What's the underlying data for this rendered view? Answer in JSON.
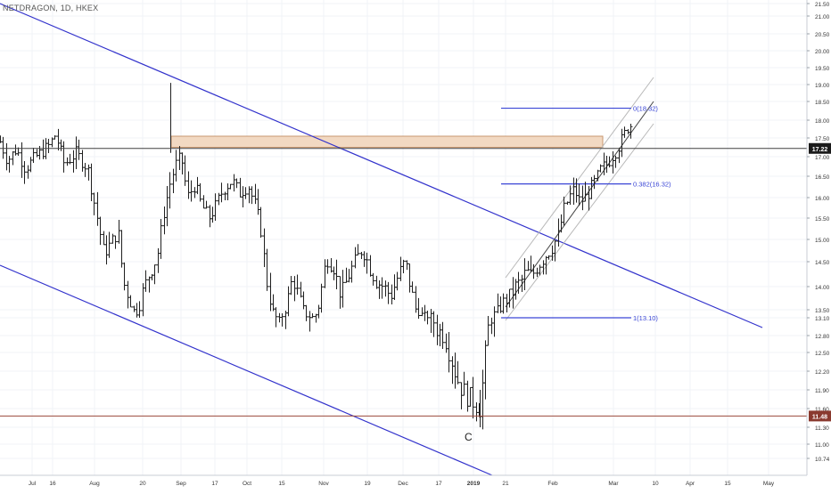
{
  "symbol_label": "NETDRAGON, 1D, HKEX",
  "colors": {
    "background": "#ffffff",
    "grid": "#f0f3f7",
    "bars": "#1f1f1f",
    "trendlines": "#3333cc",
    "fib_lines": "#3a46d6",
    "channel": "#b8b8b8",
    "resistance_zone_fill": "#f2d9c2",
    "resistance_zone_border": "#c89870",
    "price_line_current": "#404040",
    "price_line_support": "#9b4a3c",
    "axis_text": "#333333",
    "badge_current": "#1b1b1b",
    "badge_support": "#8a3a2f"
  },
  "chart_data": {
    "type": "ohlc",
    "interval": "1D",
    "ylim": [
      10.74,
      21.5
    ],
    "y_tick_labels": [
      "10.74",
      "11.00",
      "11.30",
      "11.60",
      "11.90",
      "12.20",
      "12.50",
      "12.80",
      "13.10",
      "13.50",
      "14.00",
      "14.50",
      "15.00",
      "15.50",
      "16.00",
      "16.50",
      "17.00",
      "17.50",
      "18.00",
      "18.50",
      "19.00",
      "19.50",
      "20.00",
      "20.50",
      "21.00",
      "21.50"
    ],
    "x_tick_labels": [
      "Jul",
      "16",
      "Aug",
      "20",
      "Sep",
      "17",
      "Oct",
      "15",
      "Nov",
      "19",
      "Dec",
      "17",
      "2019",
      "21",
      "Feb",
      "Mar",
      "10",
      "Apr",
      "15",
      "May"
    ],
    "current_price": {
      "value": 17.22,
      "label": "17.22"
    },
    "support_price": {
      "value": 11.48,
      "label": "11.48"
    },
    "resistance_zone": {
      "low": 17.25,
      "high": 17.55
    },
    "wave_label": "C",
    "fib_levels": [
      {
        "ratio": "0",
        "price": 18.32,
        "label": "0(18.32)"
      },
      {
        "ratio": "0.382",
        "price": 16.32,
        "label": "0.382(16.32)"
      },
      {
        "ratio": "1",
        "price": 13.1,
        "label": "1(13.10)"
      }
    ],
    "price_path": [
      [
        0,
        17.4
      ],
      [
        8,
        16.9
      ],
      [
        18,
        17.2
      ],
      [
        28,
        16.7
      ],
      [
        40,
        17.0
      ],
      [
        55,
        17.3
      ],
      [
        62,
        17.6
      ],
      [
        72,
        16.8
      ],
      [
        85,
        17.1
      ],
      [
        98,
        16.7
      ],
      [
        108,
        15.6
      ],
      [
        116,
        14.7
      ],
      [
        124,
        14.9
      ],
      [
        132,
        15.2
      ],
      [
        138,
        14.1
      ],
      [
        146,
        13.7
      ],
      [
        152,
        13.3
      ],
      [
        160,
        13.9
      ],
      [
        168,
        14.3
      ],
      [
        176,
        14.6
      ],
      [
        184,
        15.7
      ],
      [
        190,
        16.3
      ],
      [
        197,
        16.8
      ],
      [
        203,
        17.0
      ],
      [
        210,
        16.0
      ],
      [
        218,
        16.3
      ],
      [
        226,
        15.8
      ],
      [
        234,
        15.5
      ],
      [
        242,
        15.8
      ],
      [
        250,
        16.2
      ],
      [
        260,
        16.4
      ],
      [
        268,
        16.1
      ],
      [
        278,
        16.3
      ],
      [
        286,
        15.8
      ],
      [
        292,
        15.3
      ],
      [
        298,
        14.2
      ],
      [
        305,
        13.5
      ],
      [
        312,
        12.9
      ],
      [
        320,
        13.5
      ],
      [
        328,
        14.2
      ],
      [
        336,
        13.7
      ],
      [
        344,
        13.2
      ],
      [
        352,
        13.1
      ],
      [
        358,
        13.7
      ],
      [
        366,
        14.6
      ],
      [
        374,
        14.4
      ],
      [
        382,
        13.8
      ],
      [
        390,
        14.2
      ],
      [
        398,
        14.5
      ],
      [
        406,
        14.8
      ],
      [
        414,
        14.4
      ],
      [
        422,
        14.1
      ],
      [
        430,
        14.0
      ],
      [
        438,
        13.8
      ],
      [
        446,
        14.2
      ],
      [
        454,
        14.5
      ],
      [
        460,
        14.0
      ],
      [
        466,
        13.5
      ],
      [
        474,
        13.2
      ],
      [
        482,
        13.2
      ],
      [
        490,
        12.9
      ],
      [
        498,
        12.8
      ],
      [
        506,
        12.4
      ],
      [
        512,
        12.1
      ],
      [
        518,
        11.9
      ],
      [
        524,
        11.8
      ],
      [
        532,
        11.7
      ],
      [
        538,
        11.6
      ],
      [
        542,
        12.2
      ],
      [
        548,
        13.0
      ],
      [
        554,
        13.3
      ],
      [
        560,
        13.5
      ],
      [
        566,
        13.7
      ],
      [
        572,
        13.8
      ],
      [
        578,
        14.0
      ],
      [
        584,
        14.1
      ],
      [
        590,
        14.3
      ],
      [
        596,
        14.2
      ],
      [
        602,
        14.4
      ],
      [
        610,
        14.6
      ],
      [
        618,
        14.8
      ],
      [
        626,
        15.1
      ],
      [
        632,
        15.7
      ],
      [
        638,
        16.0
      ],
      [
        644,
        16.2
      ],
      [
        650,
        15.9
      ],
      [
        656,
        16.0
      ],
      [
        662,
        16.2
      ],
      [
        668,
        16.4
      ],
      [
        674,
        16.7
      ],
      [
        680,
        16.8
      ],
      [
        686,
        17.0
      ],
      [
        692,
        17.2
      ],
      [
        698,
        17.5
      ],
      [
        704,
        17.8
      ],
      [
        710,
        17.9
      ]
    ]
  }
}
